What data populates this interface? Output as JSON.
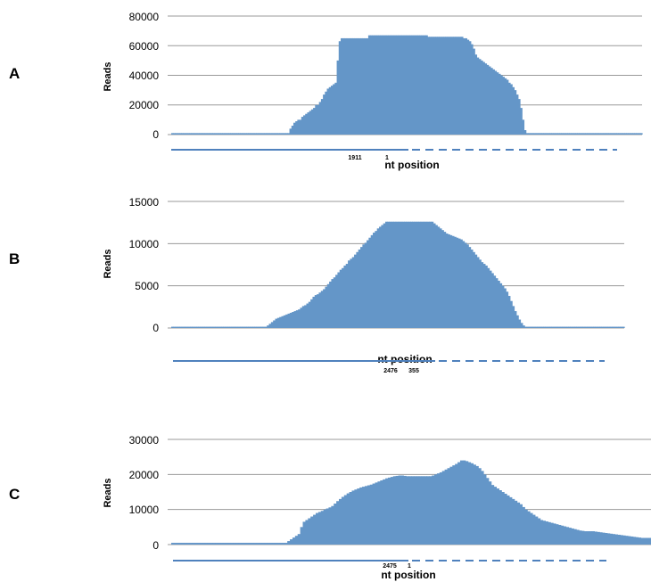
{
  "colors": {
    "bar": "#6496c8",
    "grid": "#9a9a9a",
    "line": "#4f81bd"
  },
  "chart_data": [
    {
      "panel": "A",
      "type": "bar",
      "ylabel": "Reads",
      "xlabel": "nt position",
      "yticks": [
        "80000",
        "60000",
        "40000",
        "20000",
        "0"
      ],
      "ylim": [
        0,
        80000
      ],
      "grid": true,
      "marker_labels": [
        "1911",
        "1"
      ],
      "values": [
        1000,
        1000,
        1000,
        1000,
        1000,
        1000,
        1000,
        1000,
        1000,
        1000,
        1000,
        1000,
        1000,
        1000,
        1000,
        1000,
        1000,
        1000,
        1000,
        1000,
        1000,
        1000,
        1000,
        1000,
        1000,
        1000,
        1000,
        1000,
        1000,
        1000,
        1000,
        1000,
        1000,
        1000,
        1000,
        1000,
        1000,
        1000,
        1000,
        1000,
        1000,
        1000,
        1000,
        1000,
        1000,
        1000,
        1000,
        1000,
        1000,
        1000,
        1000,
        1000,
        1000,
        1000,
        1000,
        1000,
        1000,
        1000,
        1000,
        1000,
        4000,
        6000,
        8000,
        9000,
        10000,
        10000,
        12000,
        13000,
        14000,
        15000,
        16000,
        17000,
        18000,
        20000,
        20000,
        22000,
        24000,
        27000,
        29000,
        31000,
        32000,
        33000,
        34000,
        35000,
        50000,
        63000,
        65000,
        65000,
        65000,
        65000,
        65000,
        65000,
        65000,
        65000,
        65000,
        65000,
        65000,
        65000,
        65000,
        65000,
        67000,
        67000,
        67000,
        67000,
        67000,
        67000,
        67000,
        67000,
        67000,
        67000,
        67000,
        67000,
        67000,
        67000,
        67000,
        67000,
        67000,
        67000,
        67000,
        67000,
        67000,
        67000,
        67000,
        67000,
        67000,
        67000,
        67000,
        67000,
        67000,
        67000,
        66000,
        66000,
        66000,
        66000,
        66000,
        66000,
        66000,
        66000,
        66000,
        66000,
        66000,
        66000,
        66000,
        66000,
        66000,
        66000,
        66000,
        66000,
        65000,
        65000,
        64000,
        63000,
        61000,
        58000,
        54000,
        52000,
        51000,
        50000,
        49000,
        48000,
        47000,
        46000,
        45000,
        44000,
        43000,
        42000,
        41000,
        40000,
        39000,
        38000,
        37000,
        35000,
        34000,
        32000,
        30000,
        27000,
        24000,
        18000,
        10000,
        3000,
        1000,
        1000,
        1000,
        1000,
        1000,
        1000,
        1000,
        1000,
        1000,
        1000,
        1000,
        1000,
        1000,
        1000,
        1000,
        1000,
        1000,
        1000,
        1000,
        1000,
        1000,
        1000,
        1000,
        1000,
        1000,
        1000,
        1000,
        1000,
        1000,
        1000,
        1000,
        1000,
        1000,
        1000,
        1000,
        1000,
        1000,
        1000,
        1000,
        1000,
        1000,
        1000,
        1000,
        1000,
        1000,
        1000,
        1000,
        1000,
        1000,
        1000,
        1000,
        1000,
        1000,
        1000,
        1000,
        1000,
        1000,
        1000,
        1000
      ]
    },
    {
      "panel": "B",
      "type": "bar",
      "ylabel": "Reads",
      "xlabel": "nt position",
      "yticks": [
        "15000",
        "10000",
        "5000",
        "0"
      ],
      "ylim": [
        0,
        15000
      ],
      "grid": true,
      "marker_labels": [
        "2476",
        "355"
      ],
      "values": [
        150,
        150,
        150,
        150,
        150,
        150,
        150,
        150,
        150,
        150,
        150,
        150,
        150,
        150,
        150,
        150,
        150,
        150,
        150,
        150,
        150,
        150,
        150,
        150,
        150,
        150,
        150,
        150,
        150,
        150,
        150,
        150,
        150,
        150,
        150,
        150,
        150,
        150,
        150,
        150,
        150,
        150,
        150,
        150,
        150,
        150,
        300,
        500,
        700,
        900,
        1100,
        1200,
        1300,
        1400,
        1500,
        1600,
        1700,
        1800,
        1900,
        2000,
        2100,
        2200,
        2400,
        2600,
        2700,
        2900,
        3100,
        3400,
        3700,
        3900,
        4000,
        4200,
        4400,
        4600,
        4900,
        5200,
        5500,
        5800,
        6000,
        6300,
        6600,
        6900,
        7100,
        7400,
        7600,
        8000,
        8200,
        8400,
        8700,
        9000,
        9300,
        9600,
        9900,
        10100,
        10400,
        10700,
        11000,
        11300,
        11500,
        11800,
        12000,
        12200,
        12400,
        12600,
        12600,
        12600,
        12600,
        12600,
        12600,
        12600,
        12600,
        12600,
        12600,
        12600,
        12600,
        12600,
        12600,
        12600,
        12600,
        12600,
        12600,
        12600,
        12600,
        12600,
        12600,
        12600,
        12400,
        12200,
        12000,
        11800,
        11600,
        11400,
        11200,
        11100,
        11000,
        10900,
        10800,
        10700,
        10600,
        10500,
        10300,
        10100,
        9900,
        9600,
        9300,
        9000,
        8700,
        8400,
        8100,
        7800,
        7600,
        7400,
        7100,
        6800,
        6500,
        6200,
        5900,
        5600,
        5300,
        5000,
        4700,
        4300,
        3800,
        3200,
        2600,
        2000,
        1500,
        1000,
        600,
        300,
        150,
        150,
        150,
        150,
        150,
        150,
        150,
        150,
        150,
        150,
        150,
        150,
        150,
        150,
        150,
        150,
        150,
        150,
        150,
        150,
        150,
        150,
        150,
        150,
        150,
        150,
        150,
        150,
        150,
        150,
        150,
        150,
        150,
        150,
        150,
        150,
        150,
        150,
        150,
        150,
        150,
        150,
        150,
        150,
        150,
        150,
        150,
        150
      ]
    },
    {
      "panel": "C",
      "type": "bar",
      "ylabel": "Reads",
      "xlabel": "nt position",
      "yticks": [
        "30000",
        "20000",
        "10000",
        "0"
      ],
      "ylim": [
        0,
        30000
      ],
      "grid": true,
      "marker_labels": [
        "2475",
        "1"
      ],
      "values": [
        500,
        500,
        500,
        500,
        500,
        500,
        500,
        500,
        500,
        500,
        500,
        500,
        500,
        500,
        500,
        500,
        500,
        500,
        500,
        500,
        500,
        500,
        500,
        500,
        500,
        500,
        500,
        500,
        500,
        500,
        500,
        500,
        500,
        500,
        500,
        500,
        500,
        500,
        500,
        500,
        500,
        500,
        500,
        500,
        500,
        1000,
        1500,
        2000,
        2500,
        3000,
        5000,
        6500,
        7000,
        7500,
        8000,
        8500,
        9000,
        9300,
        9600,
        10000,
        10300,
        10600,
        11000,
        11700,
        12400,
        13000,
        13600,
        14100,
        14600,
        15000,
        15400,
        15700,
        16000,
        16300,
        16500,
        16700,
        16900,
        17100,
        17400,
        17700,
        18000,
        18300,
        18600,
        18900,
        19100,
        19300,
        19500,
        19600,
        19700,
        19700,
        19600,
        19500,
        19500,
        19500,
        19500,
        19500,
        19500,
        19500,
        19500,
        19500,
        19500,
        19700,
        20000,
        20300,
        20600,
        21000,
        21400,
        21800,
        22200,
        22600,
        23000,
        23500,
        24000,
        24000,
        23800,
        23500,
        23200,
        22800,
        22400,
        21800,
        21000,
        20000,
        19000,
        18000,
        17000,
        16500,
        16000,
        15500,
        15000,
        14500,
        14000,
        13500,
        13000,
        12500,
        12000,
        11500,
        10700,
        10000,
        9500,
        9000,
        8500,
        8000,
        7500,
        7000,
        6800,
        6600,
        6400,
        6200,
        6000,
        5800,
        5600,
        5400,
        5200,
        5000,
        4800,
        4600,
        4400,
        4200,
        4000,
        3900,
        3800,
        3800,
        3800,
        3800,
        3700,
        3600,
        3500,
        3400,
        3300,
        3200,
        3100,
        3000,
        2900,
        2800,
        2700,
        2600,
        2500,
        2400,
        2300,
        2200,
        2100,
        2000,
        1900,
        1900,
        1900,
        1900
      ]
    }
  ]
}
